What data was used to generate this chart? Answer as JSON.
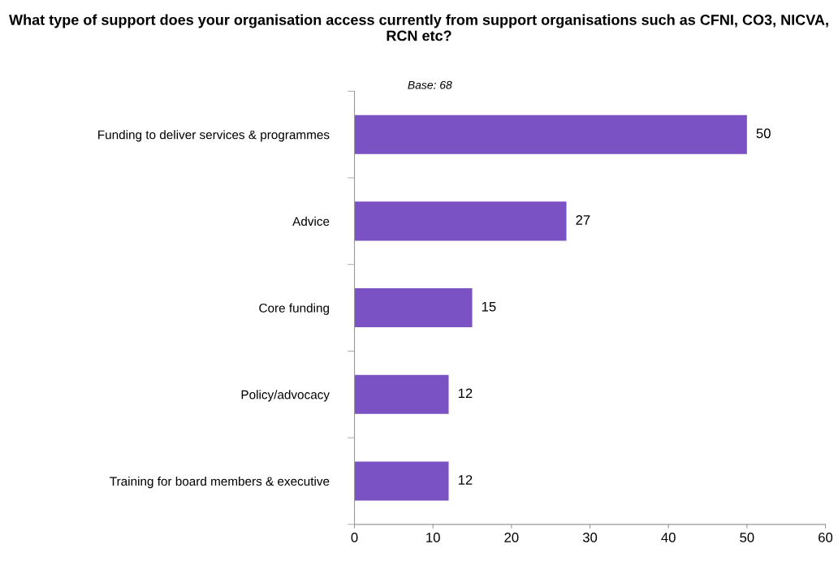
{
  "chart_data": {
    "type": "bar",
    "orientation": "horizontal",
    "title": "What type of support does your organisation access currently from support organisations such as CFNI, CO3, NICVA, RCN etc?",
    "categories": [
      "Funding to deliver services & programmes",
      "Advice",
      "Core funding",
      "Policy/advocacy",
      "Training for board members & executive"
    ],
    "values": [
      50,
      27,
      15,
      12,
      12
    ],
    "color": "#7b52c4",
    "xlim": [
      0,
      60
    ],
    "xticks": [
      0,
      10,
      20,
      30,
      40,
      50,
      60
    ],
    "data_labels": true,
    "grid": false,
    "legend": false,
    "annotations": [
      "Base: 68"
    ]
  }
}
